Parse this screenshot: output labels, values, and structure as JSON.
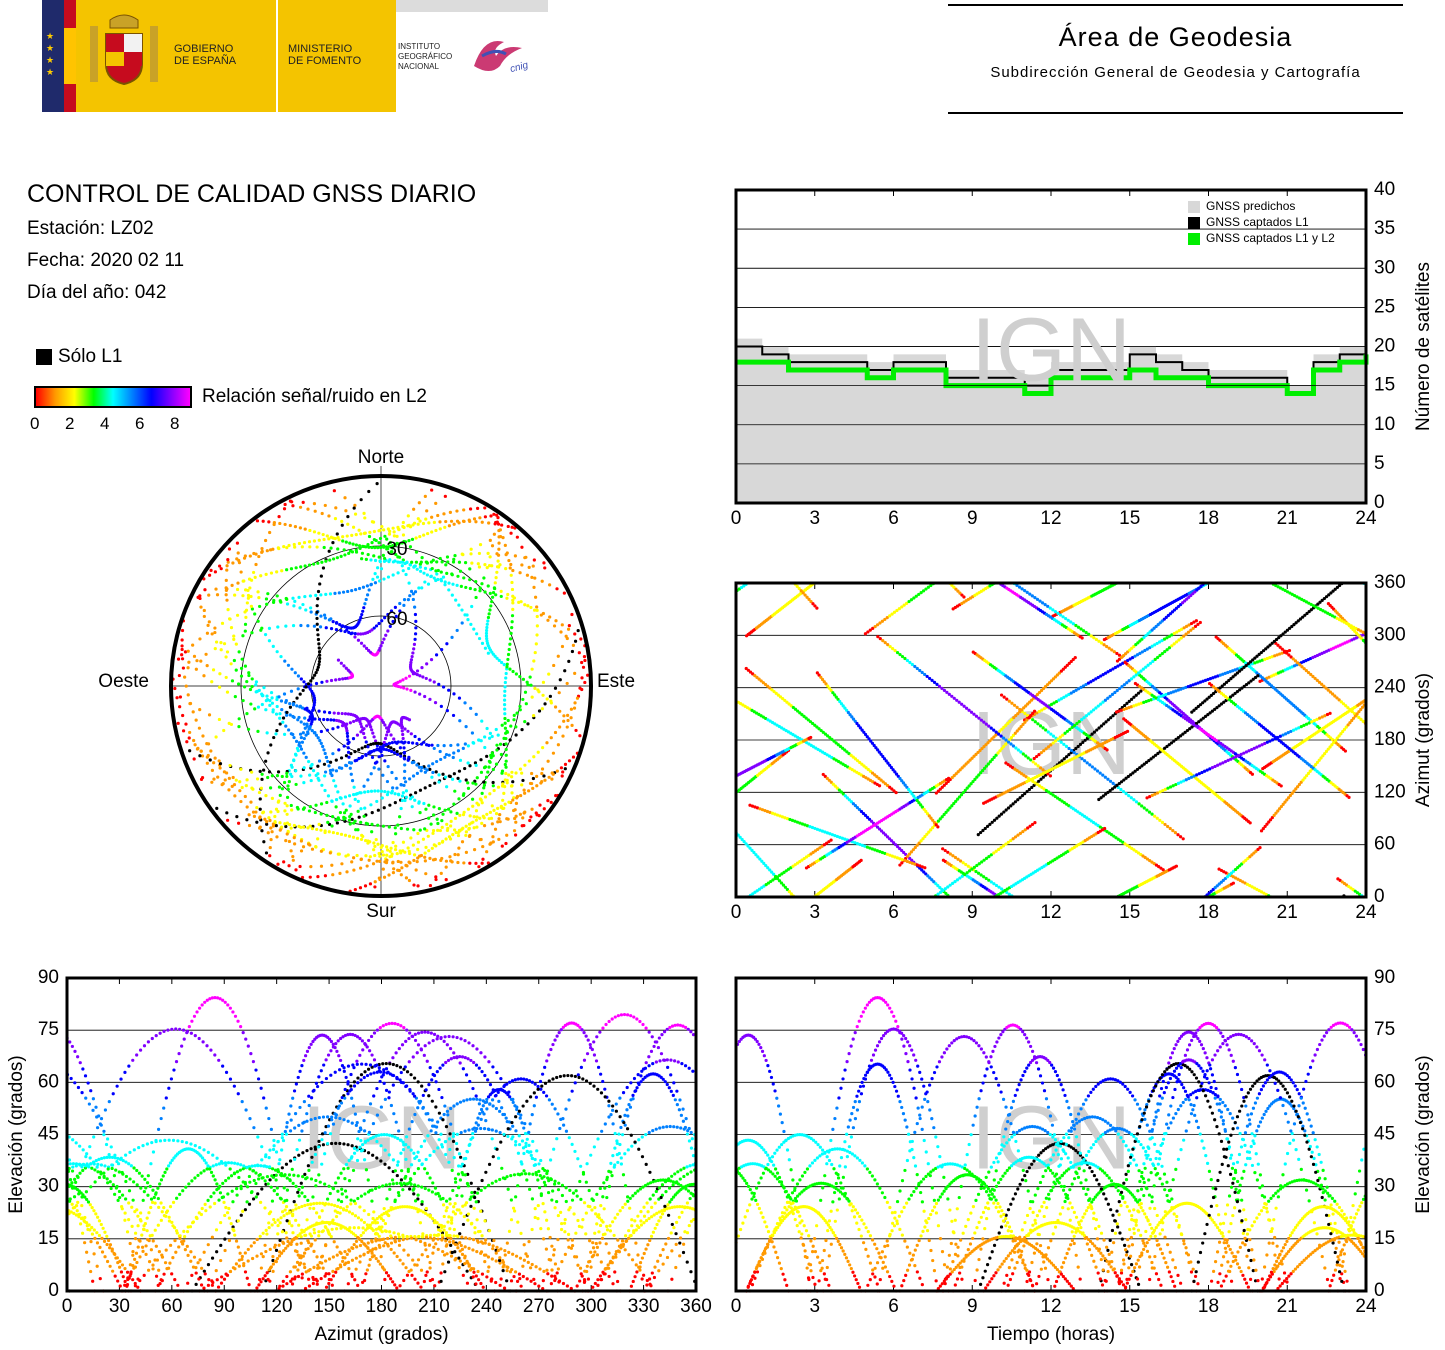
{
  "header": {
    "gov_line1": "GOBIERNO",
    "gov_line2": "DE ESPAÑA",
    "min_line1": "MINISTERIO",
    "min_line2": "DE FOMENTO",
    "ign_line1": "INSTITUTO",
    "ign_line2": "GEOGRÁFICO",
    "ign_line3": "NACIONAL",
    "cnig": "cnig",
    "area_title": "Área de Geodesia",
    "area_subtitle": "Subdirección General de Geodesia y Cartografía"
  },
  "info": {
    "title": "CONTROL DE CALIDAD GNSS DIARIO",
    "station": "Estación: LZ02",
    "date": "Fecha: 2020 02 11",
    "doy": "Día del año: 042"
  },
  "legend": {
    "l1_only": "Sólo L1",
    "snr_label": "Relación señal/ruido en L2",
    "snr_ticks": [
      "0",
      "2",
      "4",
      "6",
      "8"
    ],
    "colormap": [
      "#ff0000",
      "#ff9900",
      "#ffff00",
      "#00ff00",
      "#00ffff",
      "#0080ff",
      "#0000ff",
      "#8000ff",
      "#ff00ff"
    ]
  },
  "watermark": "IGN",
  "chart_data": [
    {
      "id": "skyplot",
      "type": "scatter",
      "projection": "polar",
      "labels": {
        "north": "Norte",
        "south": "Sur",
        "east": "Este",
        "west": "Oeste"
      },
      "ring_labels": [
        "30",
        "60"
      ],
      "elevation_rings": [
        30,
        60
      ],
      "series_note": ""
    },
    {
      "id": "satellite-count",
      "type": "area",
      "ylabel": "Número de satélites",
      "xlim": [
        0,
        24
      ],
      "ylim": [
        0,
        40
      ],
      "xticks": [
        "0",
        "3",
        "6",
        "9",
        "12",
        "15",
        "18",
        "21",
        "24"
      ],
      "yticks": [
        "0",
        "5",
        "10",
        "15",
        "20",
        "25",
        "30",
        "35",
        "40"
      ],
      "legend": [
        "GNSS predichos",
        "GNSS captados L1",
        "GNSS captados L1 y L2"
      ],
      "legend_colors": [
        "#d8d8d8",
        "#000000",
        "#00ee00"
      ],
      "series": [
        {
          "name": "GNSS predichos",
          "x": [
            0,
            1,
            2,
            3,
            4,
            5,
            6,
            7,
            8,
            9,
            10,
            11,
            12,
            13,
            14,
            15,
            16,
            17,
            18,
            19,
            20,
            21,
            22,
            23,
            24
          ],
          "values": [
            21,
            20,
            19,
            19,
            19,
            18,
            19,
            19,
            17,
            17,
            17,
            16,
            18,
            18,
            18,
            20,
            19,
            18,
            17,
            17,
            17,
            15,
            19,
            20,
            21
          ]
        },
        {
          "name": "GNSS captados L1",
          "x": [
            0,
            1,
            2,
            3,
            4,
            5,
            6,
            7,
            8,
            9,
            10,
            11,
            12,
            13,
            14,
            15,
            16,
            17,
            18,
            19,
            20,
            21,
            22,
            23,
            24
          ],
          "values": [
            20,
            19,
            18,
            18,
            18,
            17,
            18,
            18,
            16,
            16,
            16,
            15,
            17,
            17,
            17,
            19,
            18,
            17,
            16,
            16,
            16,
            14,
            18,
            19,
            20
          ]
        },
        {
          "name": "GNSS captados L1 y L2",
          "x": [
            0,
            1,
            2,
            3,
            4,
            5,
            6,
            7,
            8,
            9,
            10,
            11,
            12,
            13,
            14,
            15,
            16,
            17,
            18,
            19,
            20,
            21,
            22,
            23,
            24
          ],
          "values": [
            18,
            18,
            17,
            17,
            17,
            16,
            17,
            17,
            15,
            15,
            15,
            14,
            16,
            16,
            16,
            17,
            16,
            16,
            15,
            15,
            15,
            14,
            17,
            18,
            19
          ]
        }
      ]
    },
    {
      "id": "azimuth-time",
      "type": "scatter",
      "ylabel": "Azimut (grados)",
      "xlim": [
        0,
        24
      ],
      "ylim": [
        0,
        360
      ],
      "xticks": [
        "0",
        "3",
        "6",
        "9",
        "12",
        "15",
        "18",
        "21",
        "24"
      ],
      "yticks": [
        "0",
        "60",
        "120",
        "180",
        "240",
        "300",
        "360"
      ]
    },
    {
      "id": "elevation-azimuth",
      "type": "scatter",
      "xlabel": "Azimut (grados)",
      "ylabel": "Elevación (grados)",
      "xlim": [
        0,
        360
      ],
      "ylim": [
        0,
        90
      ],
      "xticks": [
        "0",
        "30",
        "60",
        "90",
        "120",
        "150",
        "180",
        "210",
        "240",
        "270",
        "300",
        "330",
        "360"
      ],
      "yticks": [
        "0",
        "15",
        "30",
        "45",
        "60",
        "75",
        "90"
      ]
    },
    {
      "id": "elevation-time",
      "type": "scatter",
      "xlabel": "Tiempo (horas)",
      "ylabel": "Elevación (grados)",
      "xlim": [
        0,
        24
      ],
      "ylim": [
        0,
        90
      ],
      "xticks": [
        "0",
        "3",
        "6",
        "9",
        "12",
        "15",
        "18",
        "21",
        "24"
      ],
      "yticks": [
        "0",
        "15",
        "30",
        "45",
        "60",
        "75",
        "90"
      ]
    }
  ]
}
